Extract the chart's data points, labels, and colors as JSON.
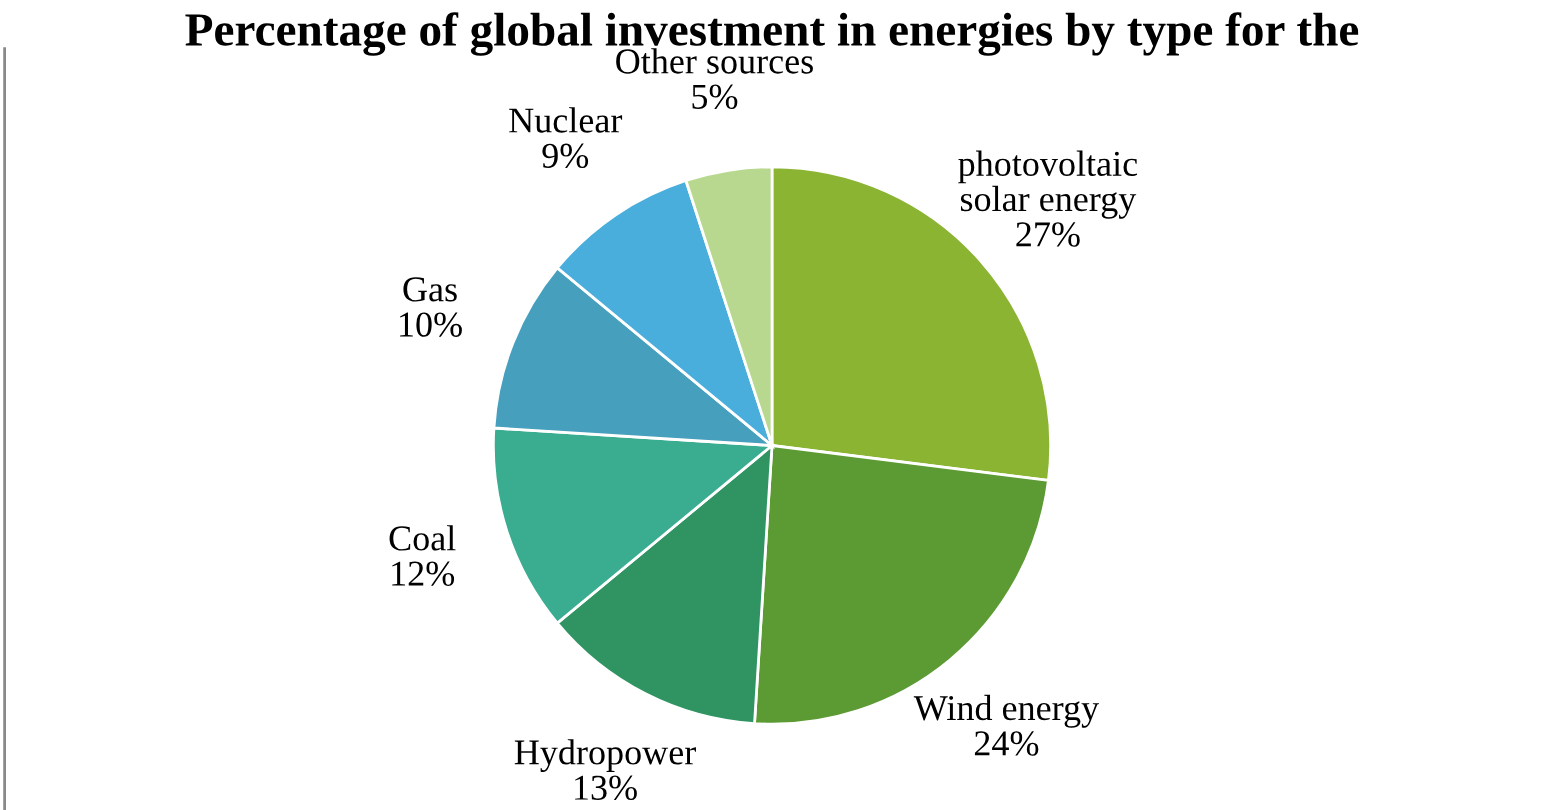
{
  "chart_data": {
    "type": "pie",
    "title": "Percentage of global investment in energies by type for the",
    "categories": [
      "photovoltaic\nsolar energy",
      "Wind energy",
      "Hydropower",
      "Coal",
      "Gas",
      "Nuclear",
      "Other sources"
    ],
    "values": [
      27,
      24,
      13,
      12,
      10,
      9,
      5
    ],
    "value_labels": [
      "27%",
      "24%",
      "13%",
      "12%",
      "10%",
      "9%",
      "5%"
    ],
    "colors": [
      "#8ab432",
      "#5c9a34",
      "#2f9462",
      "#3aac90",
      "#469fbd",
      "#4aaedd",
      "#b8d890"
    ],
    "legend": false
  }
}
